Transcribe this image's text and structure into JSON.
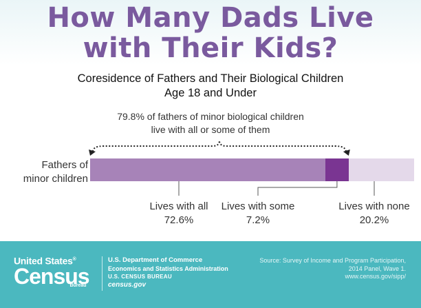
{
  "title_line1": "How Many Dads Live",
  "title_line2": "with Their Kids?",
  "subtitle_line1": "Coresidence of Fathers and Their Biological Children",
  "subtitle_line2": "Age 18 and Under",
  "annotation_line1": "79.8% of fathers of minor biological children",
  "annotation_line2": "live with all or some of them",
  "chart_data": {
    "type": "bar",
    "orientation": "horizontal",
    "stacked": true,
    "categories": [
      "Fathers of minor children"
    ],
    "category_label_line1": "Fathers of",
    "category_label_line2": "minor children",
    "xlim": [
      0,
      100
    ],
    "grid": false,
    "series": [
      {
        "name": "Lives with all",
        "value_label": "72.6%",
        "values": [
          72.6
        ],
        "color": "#a783b8"
      },
      {
        "name": "Lives with some",
        "value_label": "7.2%",
        "values": [
          7.2
        ],
        "color": "#7a3592"
      },
      {
        "name": "Lives with none",
        "value_label": "20.2%",
        "values": [
          20.2
        ],
        "color": "#e4d9ea"
      }
    ],
    "bracket_value": 79.8
  },
  "footer": {
    "logo_line1": "United States",
    "logo_registered": "®",
    "logo_line2": "Census",
    "logo_line3": "Bureau",
    "dept_line1": "U.S. Department of Commerce",
    "dept_line2": "Economics and Statistics Administration",
    "dept_line3": "U.S. CENSUS BUREAU",
    "dept_line4": "census.gov",
    "source_line1": "Source: Survey of Income and Program Participation,",
    "source_line2": "2014 Panel, Wave 1.",
    "source_line3": "www.census.gov/sipp/"
  },
  "colors": {
    "title": "#7a5a9e",
    "footer_bg": "#4bb8bf"
  }
}
